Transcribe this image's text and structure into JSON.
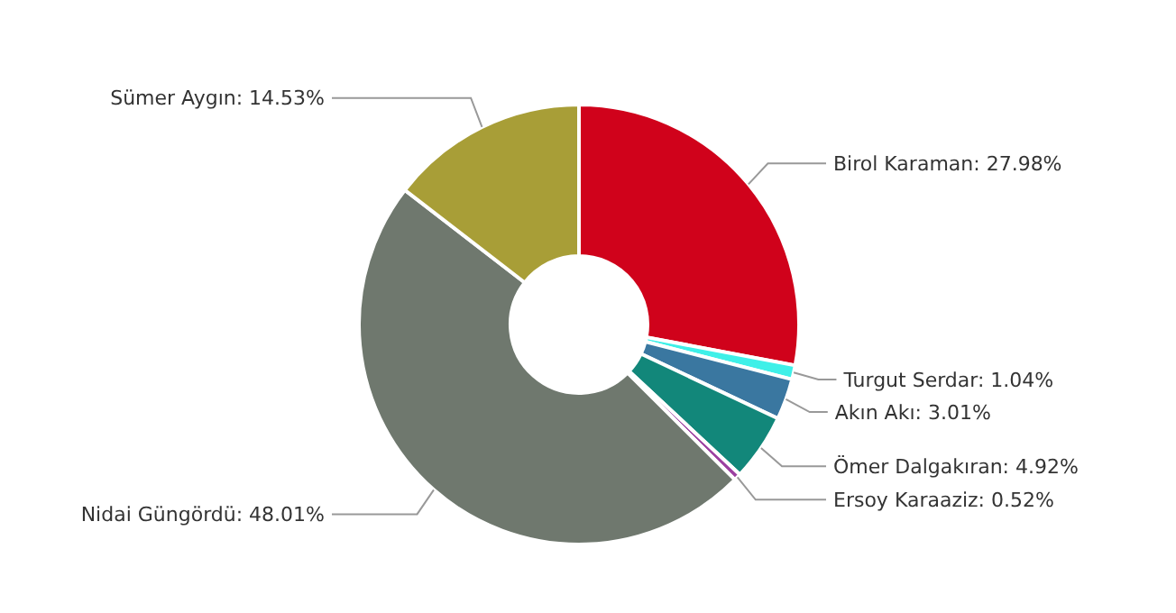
{
  "chart_data": {
    "type": "donut",
    "categories": [
      "Birol Karaman",
      "Turgut Serdar",
      "Akın Akı",
      "Ömer Dalgakıran",
      "Ersoy Karaaziz",
      "Nidai Güngördü",
      "Sümer Aygın"
    ],
    "values": [
      27.98,
      1.04,
      3.01,
      4.92,
      0.52,
      48.01,
      14.53
    ],
    "value_labels": [
      "27.98%",
      "1.04%",
      "3.01%",
      "4.92%",
      "0.52%",
      "48.01%",
      "14.53%"
    ],
    "colors": [
      "#d0021b",
      "#3ff0e8",
      "#3a77a0",
      "#12877a",
      "#9b3fa0",
      "#6f786e",
      "#a89e37"
    ]
  }
}
